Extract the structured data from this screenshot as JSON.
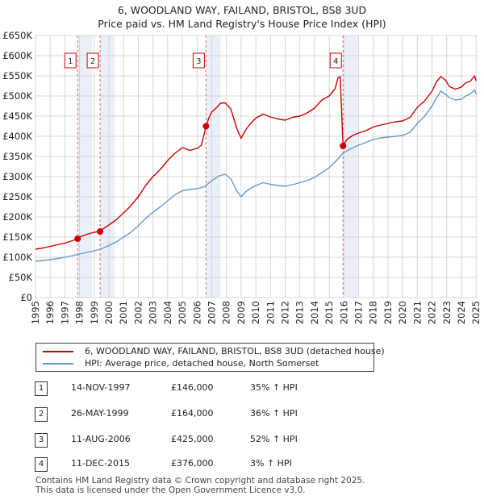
{
  "title_line1": "6, WOODLAND WAY, FAILAND, BRISTOL, BS8 3UD",
  "title_line2": "Price paid vs. HM Land Registry's House Price Index (HPI)",
  "chart_data": {
    "type": "line",
    "title": "6, WOODLAND WAY, FAILAND, BRISTOL, BS8 3UD — Price paid vs. HM Land Registry's House Price Index (HPI)",
    "xlabel": "",
    "ylabel": "",
    "xlim": [
      1995,
      2025.1
    ],
    "ylim": [
      0,
      650000
    ],
    "x_ticks": [
      1995,
      1996,
      1997,
      1998,
      1999,
      2000,
      2001,
      2002,
      2003,
      2004,
      2005,
      2006,
      2007,
      2008,
      2009,
      2010,
      2011,
      2012,
      2013,
      2014,
      2015,
      2016,
      2017,
      2018,
      2019,
      2020,
      2021,
      2022,
      2023,
      2024,
      2025
    ],
    "y_ticks": [
      0,
      50000,
      100000,
      150000,
      200000,
      250000,
      300000,
      350000,
      400000,
      450000,
      500000,
      550000,
      600000,
      650000
    ],
    "y_tick_labels": [
      "£0",
      "£50K",
      "£100K",
      "£150K",
      "£200K",
      "£250K",
      "£300K",
      "£350K",
      "£400K",
      "£450K",
      "£500K",
      "£550K",
      "£600K",
      "£650K"
    ],
    "grid": true,
    "series": [
      {
        "name": "6, WOODLAND WAY, FAILAND, BRISTOL, BS8 3UD (detached house)",
        "color": "#cc0000",
        "x": [
          1995.0,
          1995.5,
          1996.0,
          1996.5,
          1997.0,
          1997.5,
          1997.87,
          1998.0,
          1998.5,
          1999.0,
          1999.4,
          1999.5,
          2000.0,
          2000.5,
          2001.0,
          2001.5,
          2002.0,
          2002.5,
          2003.0,
          2003.5,
          2004.0,
          2004.5,
          2005.0,
          2005.5,
          2006.0,
          2006.3,
          2006.61,
          2006.8,
          2007.0,
          2007.3,
          2007.6,
          2007.9,
          2008.3,
          2008.7,
          2009.0,
          2009.3,
          2009.6,
          2010.0,
          2010.5,
          2011.0,
          2011.5,
          2012.0,
          2012.5,
          2013.0,
          2013.5,
          2014.0,
          2014.5,
          2015.0,
          2015.4,
          2015.6,
          2015.75,
          2015.94,
          2016.2,
          2016.6,
          2017.0,
          2017.5,
          2018.0,
          2018.5,
          2019.0,
          2019.5,
          2020.0,
          2020.5,
          2021.0,
          2021.5,
          2022.0,
          2022.3,
          2022.6,
          2022.9,
          2023.2,
          2023.6,
          2024.0,
          2024.3,
          2024.6,
          2024.9,
          2025.0
        ],
        "values": [
          120000,
          123000,
          127000,
          131000,
          135000,
          141000,
          146000,
          150000,
          157000,
          162000,
          164000,
          168000,
          180000,
          193000,
          210000,
          228000,
          250000,
          278000,
          300000,
          318000,
          340000,
          358000,
          372000,
          365000,
          370000,
          378000,
          425000,
          445000,
          460000,
          470000,
          482000,
          483000,
          468000,
          420000,
          395000,
          415000,
          430000,
          445000,
          455000,
          448000,
          443000,
          440000,
          447000,
          450000,
          458000,
          470000,
          490000,
          500000,
          518000,
          545000,
          548000,
          376000,
          392000,
          402000,
          408000,
          414000,
          423000,
          428000,
          432000,
          436000,
          438000,
          447000,
          472000,
          488000,
          512000,
          535000,
          548000,
          540000,
          523000,
          517000,
          522000,
          533000,
          536000,
          550000,
          537000
        ]
      },
      {
        "name": "HPI: Average price, detached house, North Somerset",
        "color": "#6699cc",
        "x": [
          1995.0,
          1995.5,
          1996.0,
          1996.5,
          1997.0,
          1997.5,
          1998.0,
          1998.5,
          1999.0,
          1999.5,
          2000.0,
          2000.5,
          2001.0,
          2001.5,
          2002.0,
          2002.5,
          2003.0,
          2003.5,
          2004.0,
          2004.5,
          2005.0,
          2005.5,
          2006.0,
          2006.5,
          2007.0,
          2007.5,
          2007.9,
          2008.3,
          2008.7,
          2009.0,
          2009.3,
          2009.6,
          2010.0,
          2010.5,
          2011.0,
          2011.5,
          2012.0,
          2012.5,
          2013.0,
          2013.5,
          2014.0,
          2014.5,
          2015.0,
          2015.5,
          2015.94,
          2016.5,
          2017.0,
          2017.5,
          2018.0,
          2018.5,
          2019.0,
          2019.5,
          2020.0,
          2020.5,
          2021.0,
          2021.5,
          2022.0,
          2022.3,
          2022.6,
          2022.9,
          2023.2,
          2023.6,
          2024.0,
          2024.3,
          2024.6,
          2024.9,
          2025.0
        ],
        "values": [
          90000,
          92000,
          94000,
          97000,
          100000,
          104000,
          108000,
          112000,
          116000,
          121000,
          129000,
          138000,
          150000,
          162000,
          178000,
          196000,
          212000,
          225000,
          240000,
          255000,
          265000,
          268000,
          270000,
          275000,
          290000,
          302000,
          306000,
          295000,
          265000,
          250000,
          262000,
          270000,
          278000,
          285000,
          281000,
          278000,
          276000,
          280000,
          285000,
          290000,
          298000,
          310000,
          322000,
          340000,
          358000,
          370000,
          378000,
          385000,
          392000,
          396000,
          398000,
          400000,
          402000,
          410000,
          432000,
          450000,
          475000,
          495000,
          512000,
          505000,
          495000,
          490000,
          492000,
          500000,
          505000,
          515000,
          505000
        ]
      }
    ],
    "markers": [
      {
        "label": "1",
        "x": 1997.87,
        "y": 146000
      },
      {
        "label": "2",
        "x": 1999.4,
        "y": 164000
      },
      {
        "label": "3",
        "x": 2006.61,
        "y": 425000
      },
      {
        "label": "4",
        "x": 2015.94,
        "y": 376000
      }
    ]
  },
  "legend": {
    "items": [
      {
        "label": "6, WOODLAND WAY, FAILAND, BRISTOL, BS8 3UD (detached house)",
        "color": "#cc0000"
      },
      {
        "label": "HPI: Average price, detached house, North Somerset",
        "color": "#6699cc"
      }
    ]
  },
  "sales": [
    {
      "num": "1",
      "date": "14-NOV-1997",
      "price": "£146,000",
      "hpi": "35% ↑ HPI"
    },
    {
      "num": "2",
      "date": "26-MAY-1999",
      "price": "£164,000",
      "hpi": "36% ↑ HPI"
    },
    {
      "num": "3",
      "date": "11-AUG-2006",
      "price": "£425,000",
      "hpi": "52% ↑ HPI"
    },
    {
      "num": "4",
      "date": "11-DEC-2015",
      "price": "£376,000",
      "hpi": "3% ↑ HPI"
    }
  ],
  "footer": {
    "line1": "Contains HM Land Registry data © Crown copyright and database right 2025.",
    "line2": "This data is licensed under the Open Government Licence v3.0."
  }
}
